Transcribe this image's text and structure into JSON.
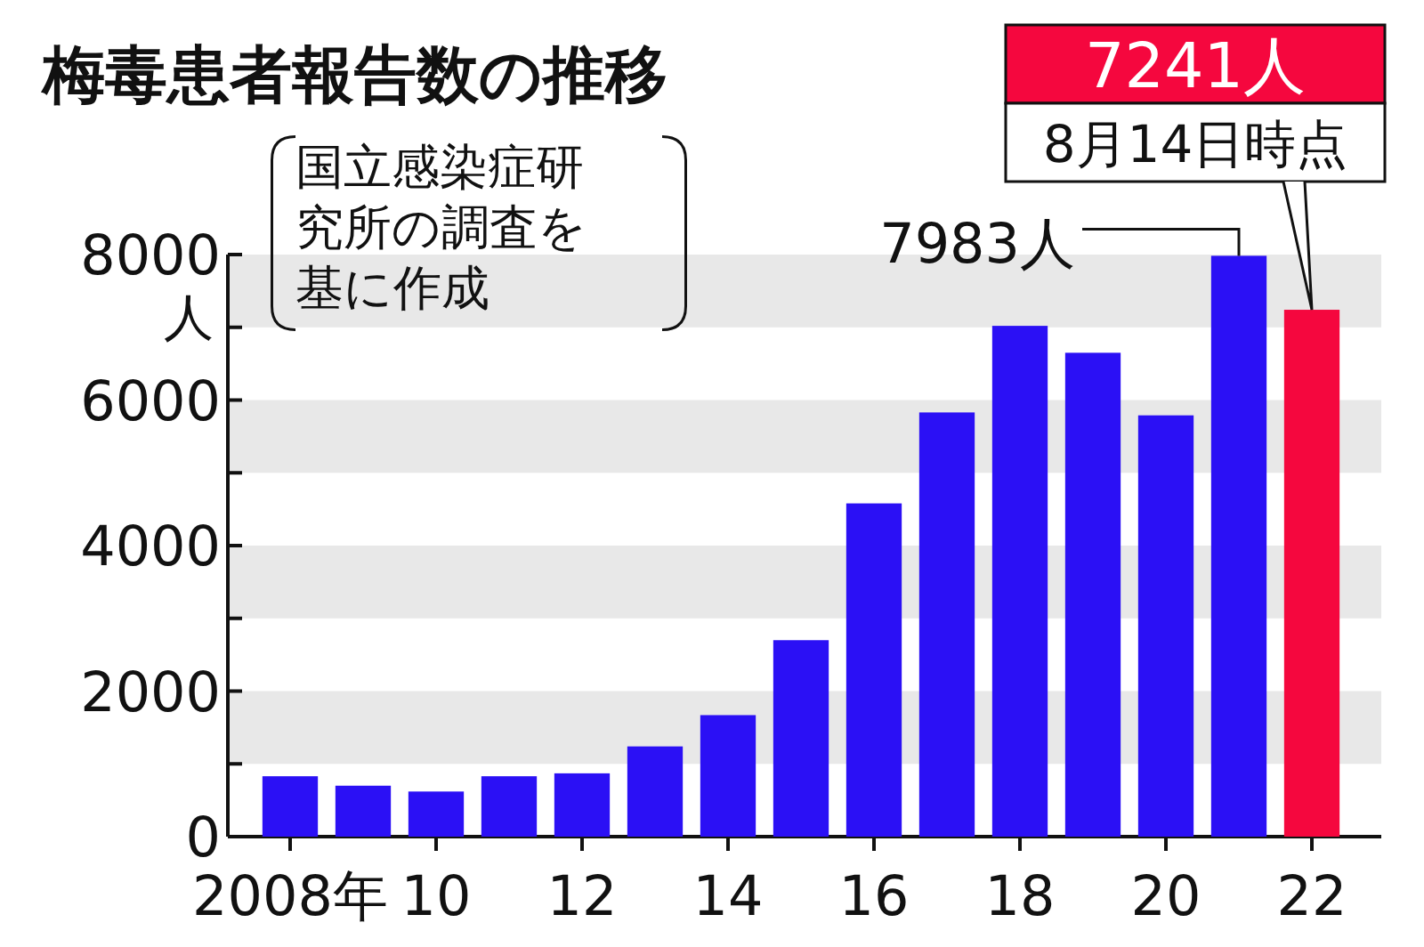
{
  "chart_data": {
    "type": "bar",
    "title": "梅毒患者報告数の推移",
    "ylabel": "人",
    "categories": [
      "2008年",
      null,
      "10",
      null,
      "12",
      null,
      "14",
      null,
      "16",
      null,
      "18",
      null,
      "20",
      null,
      "22"
    ],
    "values": [
      830,
      700,
      620,
      830,
      870,
      1240,
      1670,
      2700,
      4580,
      5830,
      7020,
      6650,
      5790,
      7983,
      7241
    ],
    "colors": [
      "#2b10f5",
      "#2b10f5",
      "#2b10f5",
      "#2b10f5",
      "#2b10f5",
      "#2b10f5",
      "#2b10f5",
      "#2b10f5",
      "#2b10f5",
      "#2b10f5",
      "#2b10f5",
      "#2b10f5",
      "#2b10f5",
      "#2b10f5",
      "#f5073e"
    ],
    "ylim": [
      0,
      8000
    ],
    "yticks": [
      0,
      {
        "value": 1000,
        "label": null
      },
      2000,
      {
        "value": 3000,
        "label": null
      },
      4000,
      {
        "value": 5000,
        "label": null
      },
      6000,
      {
        "value": 7000,
        "label": null
      },
      8000
    ],
    "bands": [
      {
        "axis": "y",
        "from": 1000,
        "to": 2000,
        "color": "#e8e8e8"
      },
      {
        "axis": "y",
        "from": 3000,
        "to": 4000,
        "color": "#e8e8e8"
      },
      {
        "axis": "y",
        "from": 5000,
        "to": 6000,
        "color": "#e8e8e8"
      },
      {
        "axis": "y",
        "from": 7000,
        "to": 8000,
        "color": "#e8e8e8"
      }
    ],
    "annotations": [
      {
        "text": "7983人",
        "y": 7983
      },
      {
        "text": "7241人",
        "x": "22",
        "y": 7241
      },
      "8月14日時点",
      "国立感染症研究所の調査を基に作成"
    ]
  }
}
